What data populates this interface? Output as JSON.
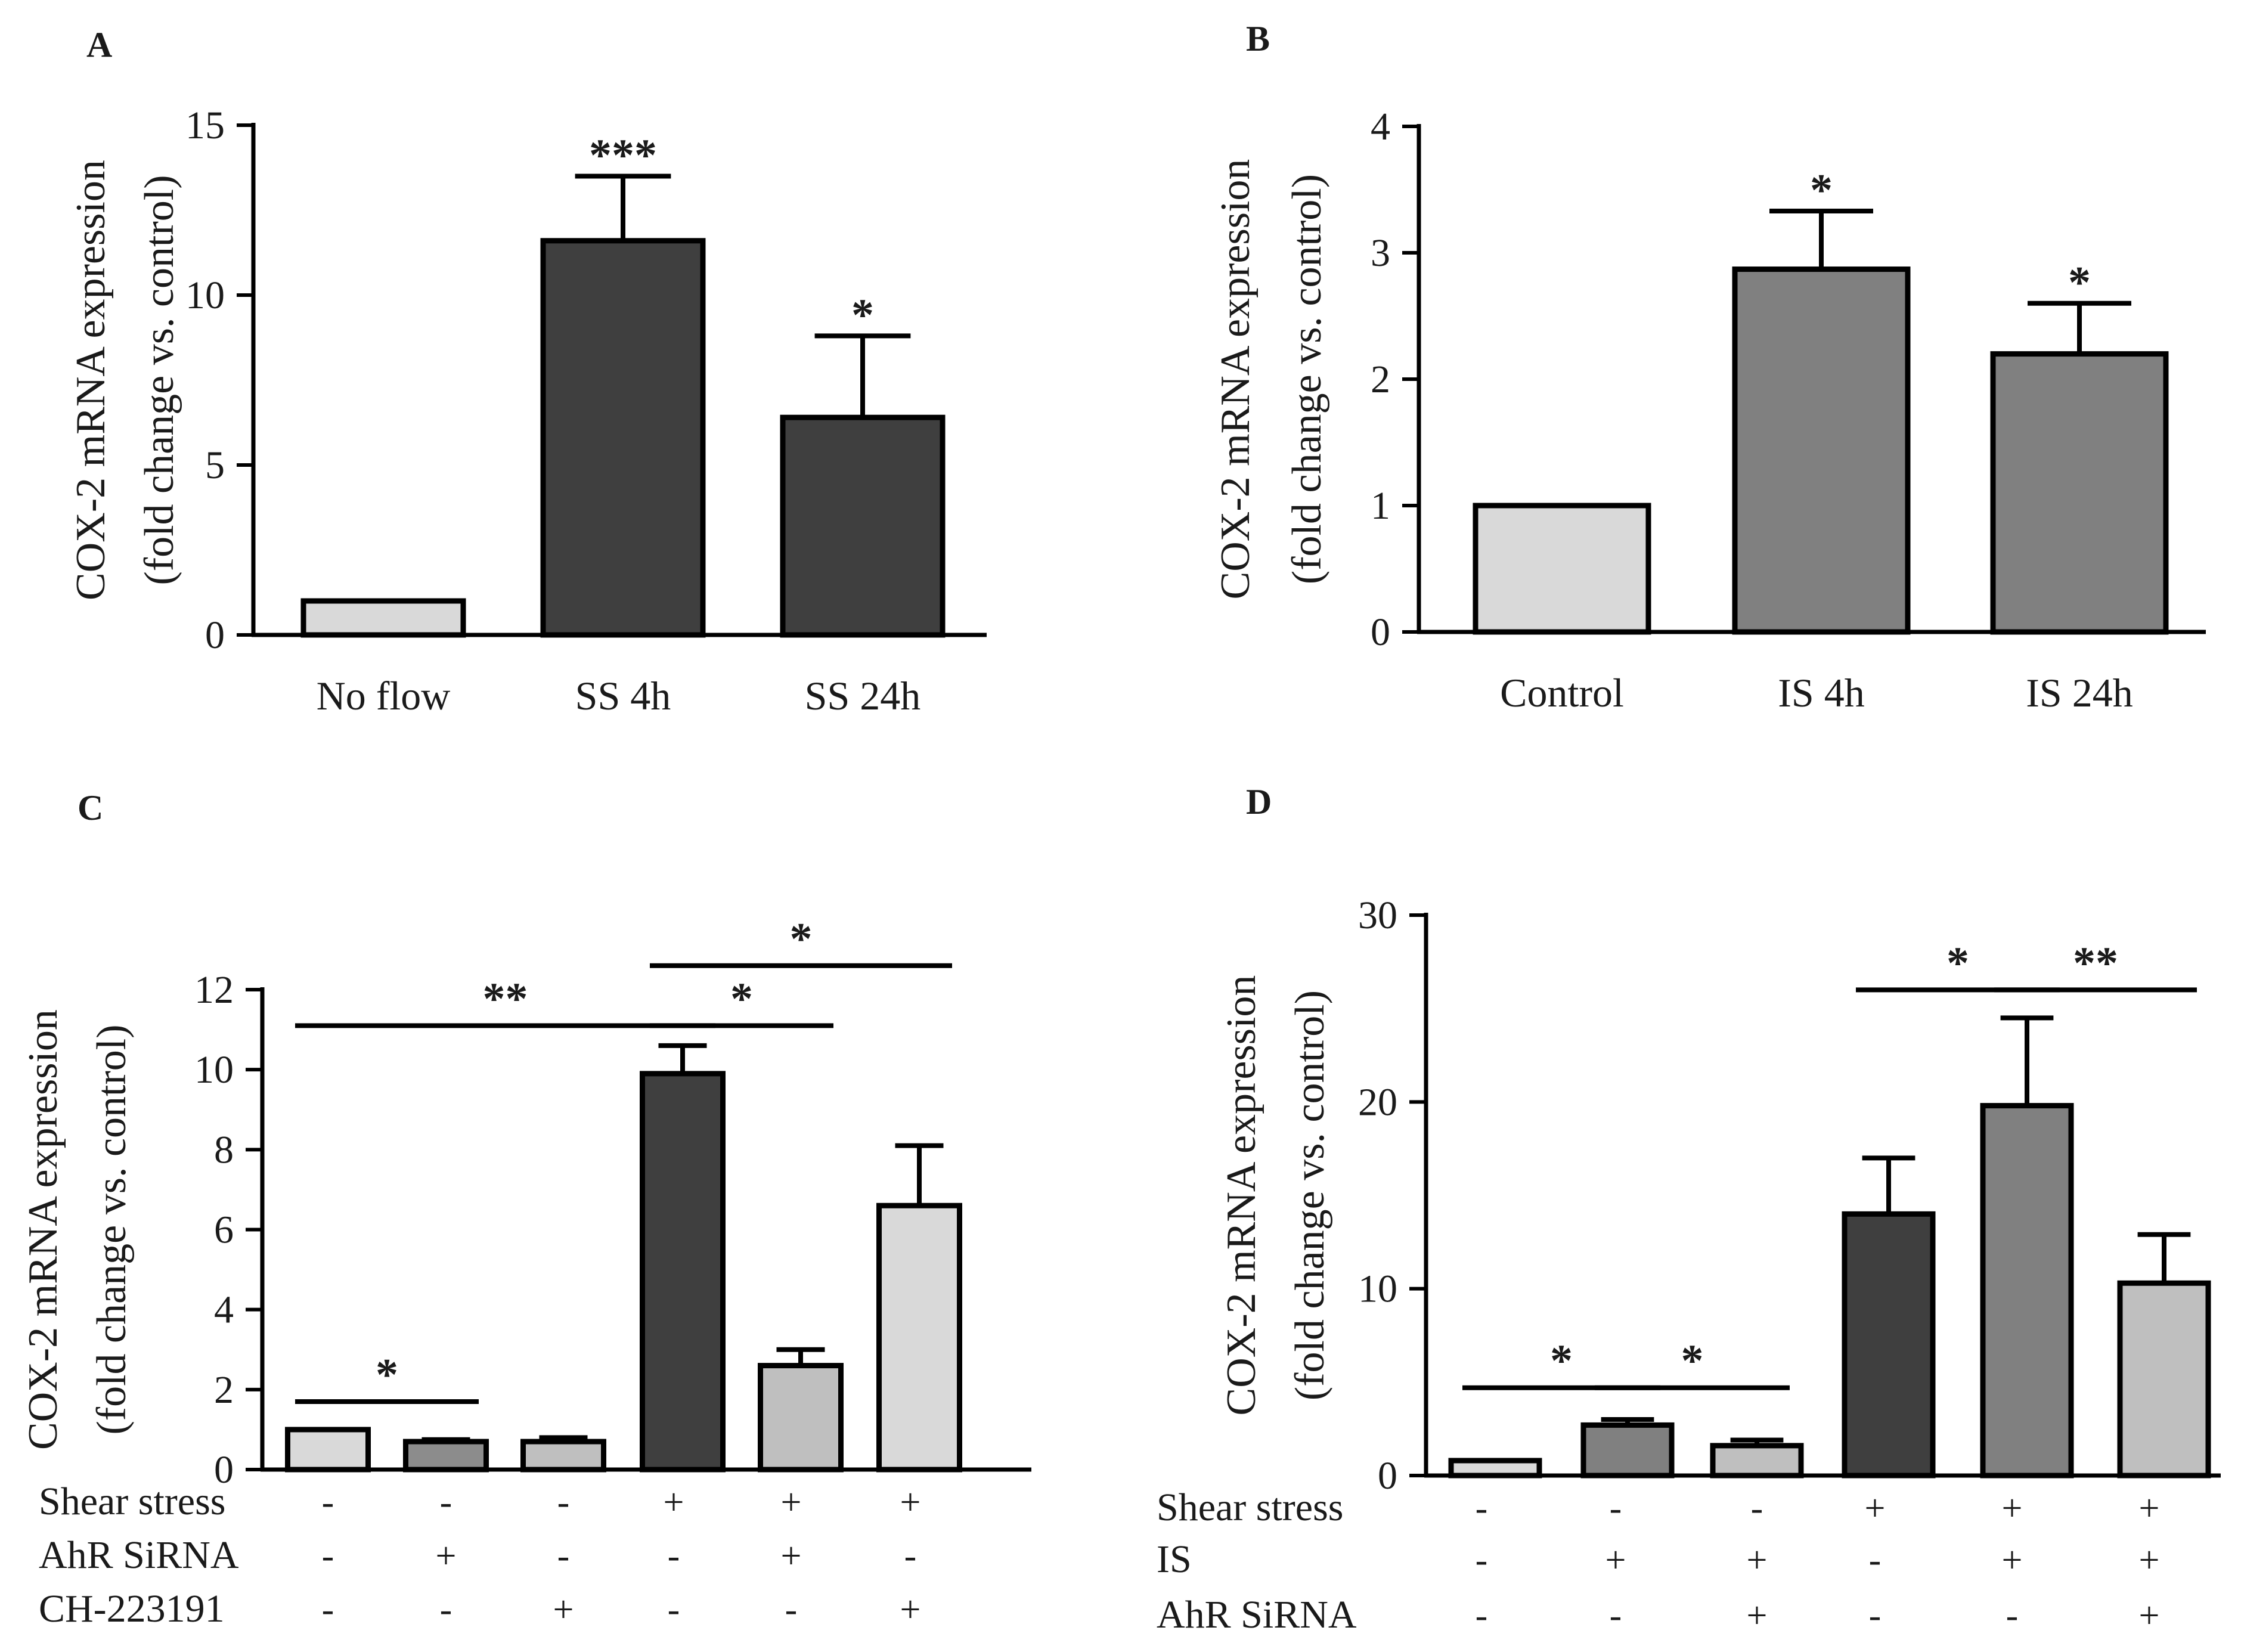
{
  "chart_data": [
    {
      "panel": "A",
      "type": "bar",
      "ylabel": "COX-2 mRNA expression",
      "ylabel2": "(fold change vs. control)",
      "ylim": [
        0,
        15
      ],
      "yticks": [
        0,
        5,
        10,
        15
      ],
      "categories": [
        "No flow",
        "SS 4h",
        "SS 24h"
      ],
      "values": [
        1.0,
        11.6,
        6.4
      ],
      "errors": [
        0.0,
        1.9,
        2.4
      ],
      "colors": [
        "#d9d9d9",
        "#3f3f3f",
        "#3f3f3f"
      ],
      "stars": [
        "",
        "***",
        "*"
      ],
      "brackets": []
    },
    {
      "panel": "B",
      "type": "bar",
      "ylabel": "COX-2 mRNA expression",
      "ylabel2": "(fold change vs. control)",
      "ylim": [
        0,
        4
      ],
      "yticks": [
        0,
        1,
        2,
        3,
        4
      ],
      "categories": [
        "Control",
        "IS 4h",
        "IS 24h"
      ],
      "values": [
        1.0,
        2.87,
        2.2
      ],
      "errors": [
        0.0,
        0.46,
        0.4
      ],
      "colors": [
        "#d9d9d9",
        "#808080",
        "#808080"
      ],
      "stars": [
        "",
        "*",
        "*"
      ],
      "brackets": []
    },
    {
      "panel": "C",
      "type": "bar",
      "ylabel": "COX-2 mRNA expression",
      "ylabel2": "(fold change vs. control)",
      "ylim": [
        0,
        12
      ],
      "yticks": [
        0,
        2,
        4,
        6,
        8,
        10,
        12
      ],
      "categories": [
        "",
        "",
        "",
        "",
        "",
        ""
      ],
      "values": [
        1.0,
        0.7,
        0.7,
        9.9,
        2.6,
        6.6
      ],
      "errors": [
        0.0,
        0.05,
        0.1,
        0.7,
        0.4,
        1.5
      ],
      "colors": [
        "#d9d9d9",
        "#8c8c8c",
        "#bfbfbf",
        "#3f3f3f",
        "#bfbfbf",
        "#d9d9d9"
      ],
      "stars": [
        "",
        "",
        "",
        "",
        "",
        ""
      ],
      "brackets": [
        {
          "from": 0,
          "to": 1,
          "y": 1.7,
          "label": "*"
        },
        {
          "from": 0,
          "to": 3,
          "y": 11.1,
          "label": "**"
        },
        {
          "from": 3,
          "to": 4,
          "y": 11.1,
          "label": "*"
        },
        {
          "from": 3,
          "to": 5,
          "y": 12.6,
          "label": "*"
        }
      ],
      "rows": [
        {
          "label": "Shear stress",
          "signs": [
            "-",
            "-",
            "-",
            "+",
            "+",
            "+"
          ]
        },
        {
          "label": "AhR SiRNA",
          "signs": [
            "-",
            "+",
            "-",
            "-",
            "+",
            "-"
          ]
        },
        {
          "label": "CH-223191",
          "signs": [
            "-",
            "-",
            "+",
            "-",
            "-",
            "+"
          ]
        }
      ]
    },
    {
      "panel": "D",
      "type": "bar",
      "ylabel": "COX-2 mRNA expression",
      "ylabel2": "(fold change vs. control)",
      "ylim": [
        0,
        30
      ],
      "yticks": [
        0,
        10,
        20,
        30
      ],
      "categories": [
        "",
        "",
        "",
        "",
        "",
        ""
      ],
      "values": [
        0.8,
        2.7,
        1.6,
        14.0,
        19.8,
        10.3
      ],
      "errors": [
        0.0,
        0.3,
        0.3,
        3.0,
        4.7,
        2.6
      ],
      "colors": [
        "#d9d9d9",
        "#808080",
        "#bfbfbf",
        "#3f3f3f",
        "#808080",
        "#bfbfbf"
      ],
      "stars": [
        "",
        "",
        "",
        "",
        "",
        ""
      ],
      "brackets": [
        {
          "from": 0,
          "to": 1,
          "y": 4.7,
          "label": "*"
        },
        {
          "from": 1,
          "to": 2,
          "y": 4.7,
          "label": "*"
        },
        {
          "from": 3,
          "to": 4,
          "y": 26.0,
          "label": "*"
        },
        {
          "from": 4,
          "to": 5,
          "y": 26.0,
          "label": "**"
        }
      ],
      "rows": [
        {
          "label": "Shear stress",
          "signs": [
            "-",
            "-",
            "-",
            "+",
            "+",
            "+"
          ]
        },
        {
          "label": "IS",
          "signs": [
            "-",
            "+",
            "+",
            "-",
            "+",
            "+"
          ]
        },
        {
          "label": "AhR SiRNA",
          "signs": [
            "-",
            "-",
            "+",
            "-",
            "-",
            "+"
          ]
        }
      ]
    }
  ]
}
